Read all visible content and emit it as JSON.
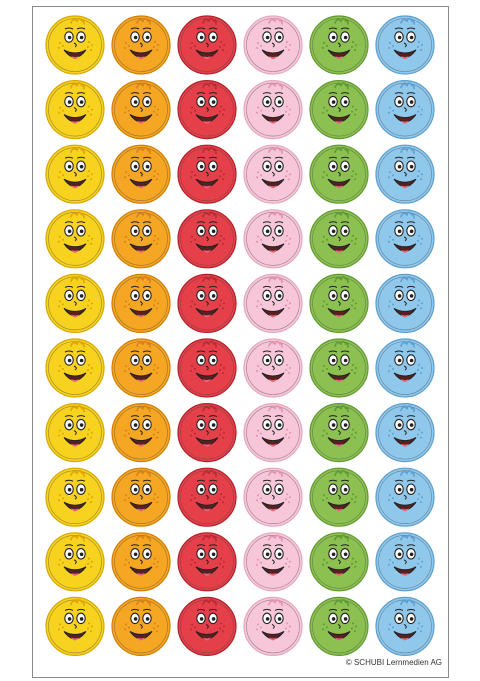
{
  "sheet": {
    "copyright": "© SCHUBI Lernmedien AG"
  },
  "stickers": {
    "rows": 10,
    "columns": [
      {
        "name": "yellow",
        "fill": "#f7d21e",
        "rim": "#d8a800",
        "dot": "#e0a400"
      },
      {
        "name": "orange",
        "fill": "#f5a623",
        "rim": "#d07e00",
        "dot": "#d8801a"
      },
      {
        "name": "red",
        "fill": "#e5404a",
        "rim": "#b31f28",
        "dot": "#b82a33"
      },
      {
        "name": "pink",
        "fill": "#f7c7d9",
        "rim": "#e7a7bf",
        "dot": "#e292ad"
      },
      {
        "name": "green",
        "fill": "#8cc152",
        "rim": "#5f9a2c",
        "dot": "#5e9a30"
      },
      {
        "name": "blue",
        "fill": "#90c8ec",
        "rim": "#5b9fcf",
        "dot": "#5d9fd0"
      }
    ]
  }
}
